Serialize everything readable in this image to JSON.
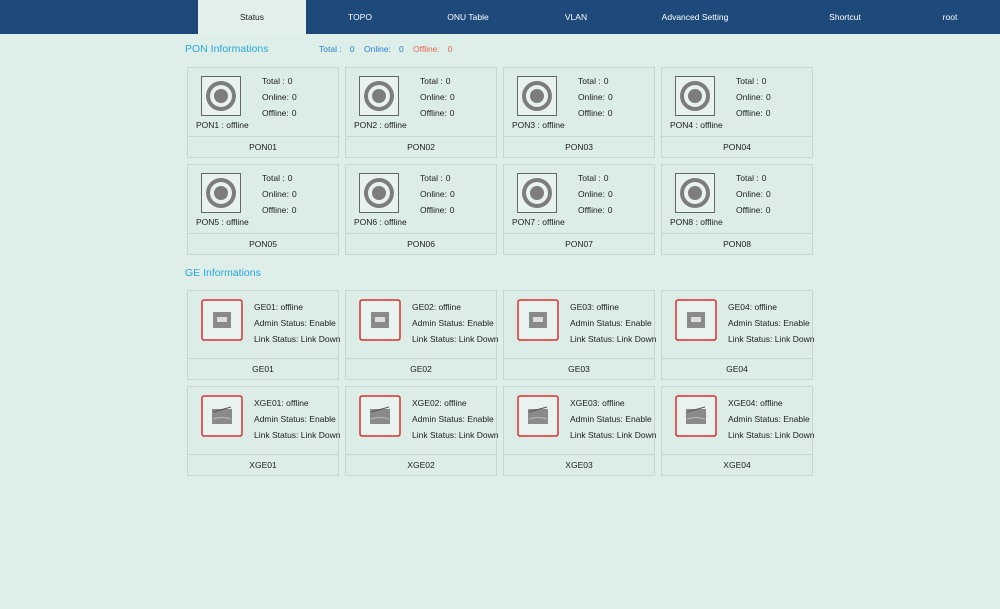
{
  "nav": {
    "items": [
      "Status",
      "TOPO",
      "ONU Table",
      "VLAN",
      "Advanced Setting",
      "Shortcut",
      "root"
    ]
  },
  "pon": {
    "title": "PON Informations",
    "summary": [
      {
        "label": "Total :",
        "value": 0
      },
      {
        "label": "Online:",
        "value": 0
      },
      {
        "label": "Offline:",
        "value": 0
      }
    ],
    "cards": [
      {
        "name": "PON1 : offline",
        "stats": [
          {
            "label": "Total :",
            "value": 0
          },
          {
            "label": "Online:",
            "value": 0
          },
          {
            "label": "Offline:",
            "value": 0
          }
        ],
        "footer": "PON01"
      },
      {
        "name": "PON2 : offline",
        "stats": [
          {
            "label": "Total :",
            "value": 0
          },
          {
            "label": "Online:",
            "value": 0
          },
          {
            "label": "Offline:",
            "value": 0
          }
        ],
        "footer": "PON02"
      },
      {
        "name": "PON3 : offline",
        "stats": [
          {
            "label": "Total :",
            "value": 0
          },
          {
            "label": "Online:",
            "value": 0
          },
          {
            "label": "Offline:",
            "value": 0
          }
        ],
        "footer": "PON03"
      },
      {
        "name": "PON4 : offline",
        "stats": [
          {
            "label": "Total :",
            "value": 0
          },
          {
            "label": "Online:",
            "value": 0
          },
          {
            "label": "Offline:",
            "value": 0
          }
        ],
        "footer": "PON04"
      },
      {
        "name": "PON5 : offline",
        "stats": [
          {
            "label": "Total :",
            "value": 0
          },
          {
            "label": "Online:",
            "value": 0
          },
          {
            "label": "Offline:",
            "value": 0
          }
        ],
        "footer": "PON05"
      },
      {
        "name": "PON6 : offline",
        "stats": [
          {
            "label": "Total :",
            "value": 0
          },
          {
            "label": "Online:",
            "value": 0
          },
          {
            "label": "Offline:",
            "value": 0
          }
        ],
        "footer": "PON06"
      },
      {
        "name": "PON7 : offline",
        "stats": [
          {
            "label": "Total :",
            "value": 0
          },
          {
            "label": "Online:",
            "value": 0
          },
          {
            "label": "Offline:",
            "value": 0
          }
        ],
        "footer": "PON07"
      },
      {
        "name": "PON8 : offline",
        "stats": [
          {
            "label": "Total :",
            "value": 0
          },
          {
            "label": "Online:",
            "value": 0
          },
          {
            "label": "Offline:",
            "value": 0
          }
        ],
        "footer": "PON08"
      }
    ]
  },
  "ge": {
    "title": "GE Informations",
    "cards": [
      {
        "lines": [
          "GE01: offline",
          "Admin Status: Enable",
          "Link Status: Link Down"
        ],
        "footer": "GE01"
      },
      {
        "lines": [
          "GE02: offline",
          "Admin Status: Enable",
          "Link Status: Link Down"
        ],
        "footer": "GE02"
      },
      {
        "lines": [
          "GE03: offline",
          "Admin Status: Enable",
          "Link Status: Link Down"
        ],
        "footer": "GE03"
      },
      {
        "lines": [
          "GE04: offline",
          "Admin Status: Enable",
          "Link Status: Link Down"
        ],
        "footer": "GE04"
      },
      {
        "lines": [
          "XGE01: offline",
          "Admin Status: Enable",
          "Link Status: Link Down"
        ],
        "footer": "XGE01"
      },
      {
        "lines": [
          "XGE02: offline",
          "Admin Status: Enable",
          "Link Status: Link Down"
        ],
        "footer": "XGE02"
      },
      {
        "lines": [
          "XGE03: offline",
          "Admin Status: Enable",
          "Link Status: Link Down"
        ],
        "footer": "XGE03"
      },
      {
        "lines": [
          "XGE04: offline",
          "Admin Status: Enable",
          "Link Status: Link Down"
        ],
        "footer": "XGE04"
      }
    ]
  }
}
